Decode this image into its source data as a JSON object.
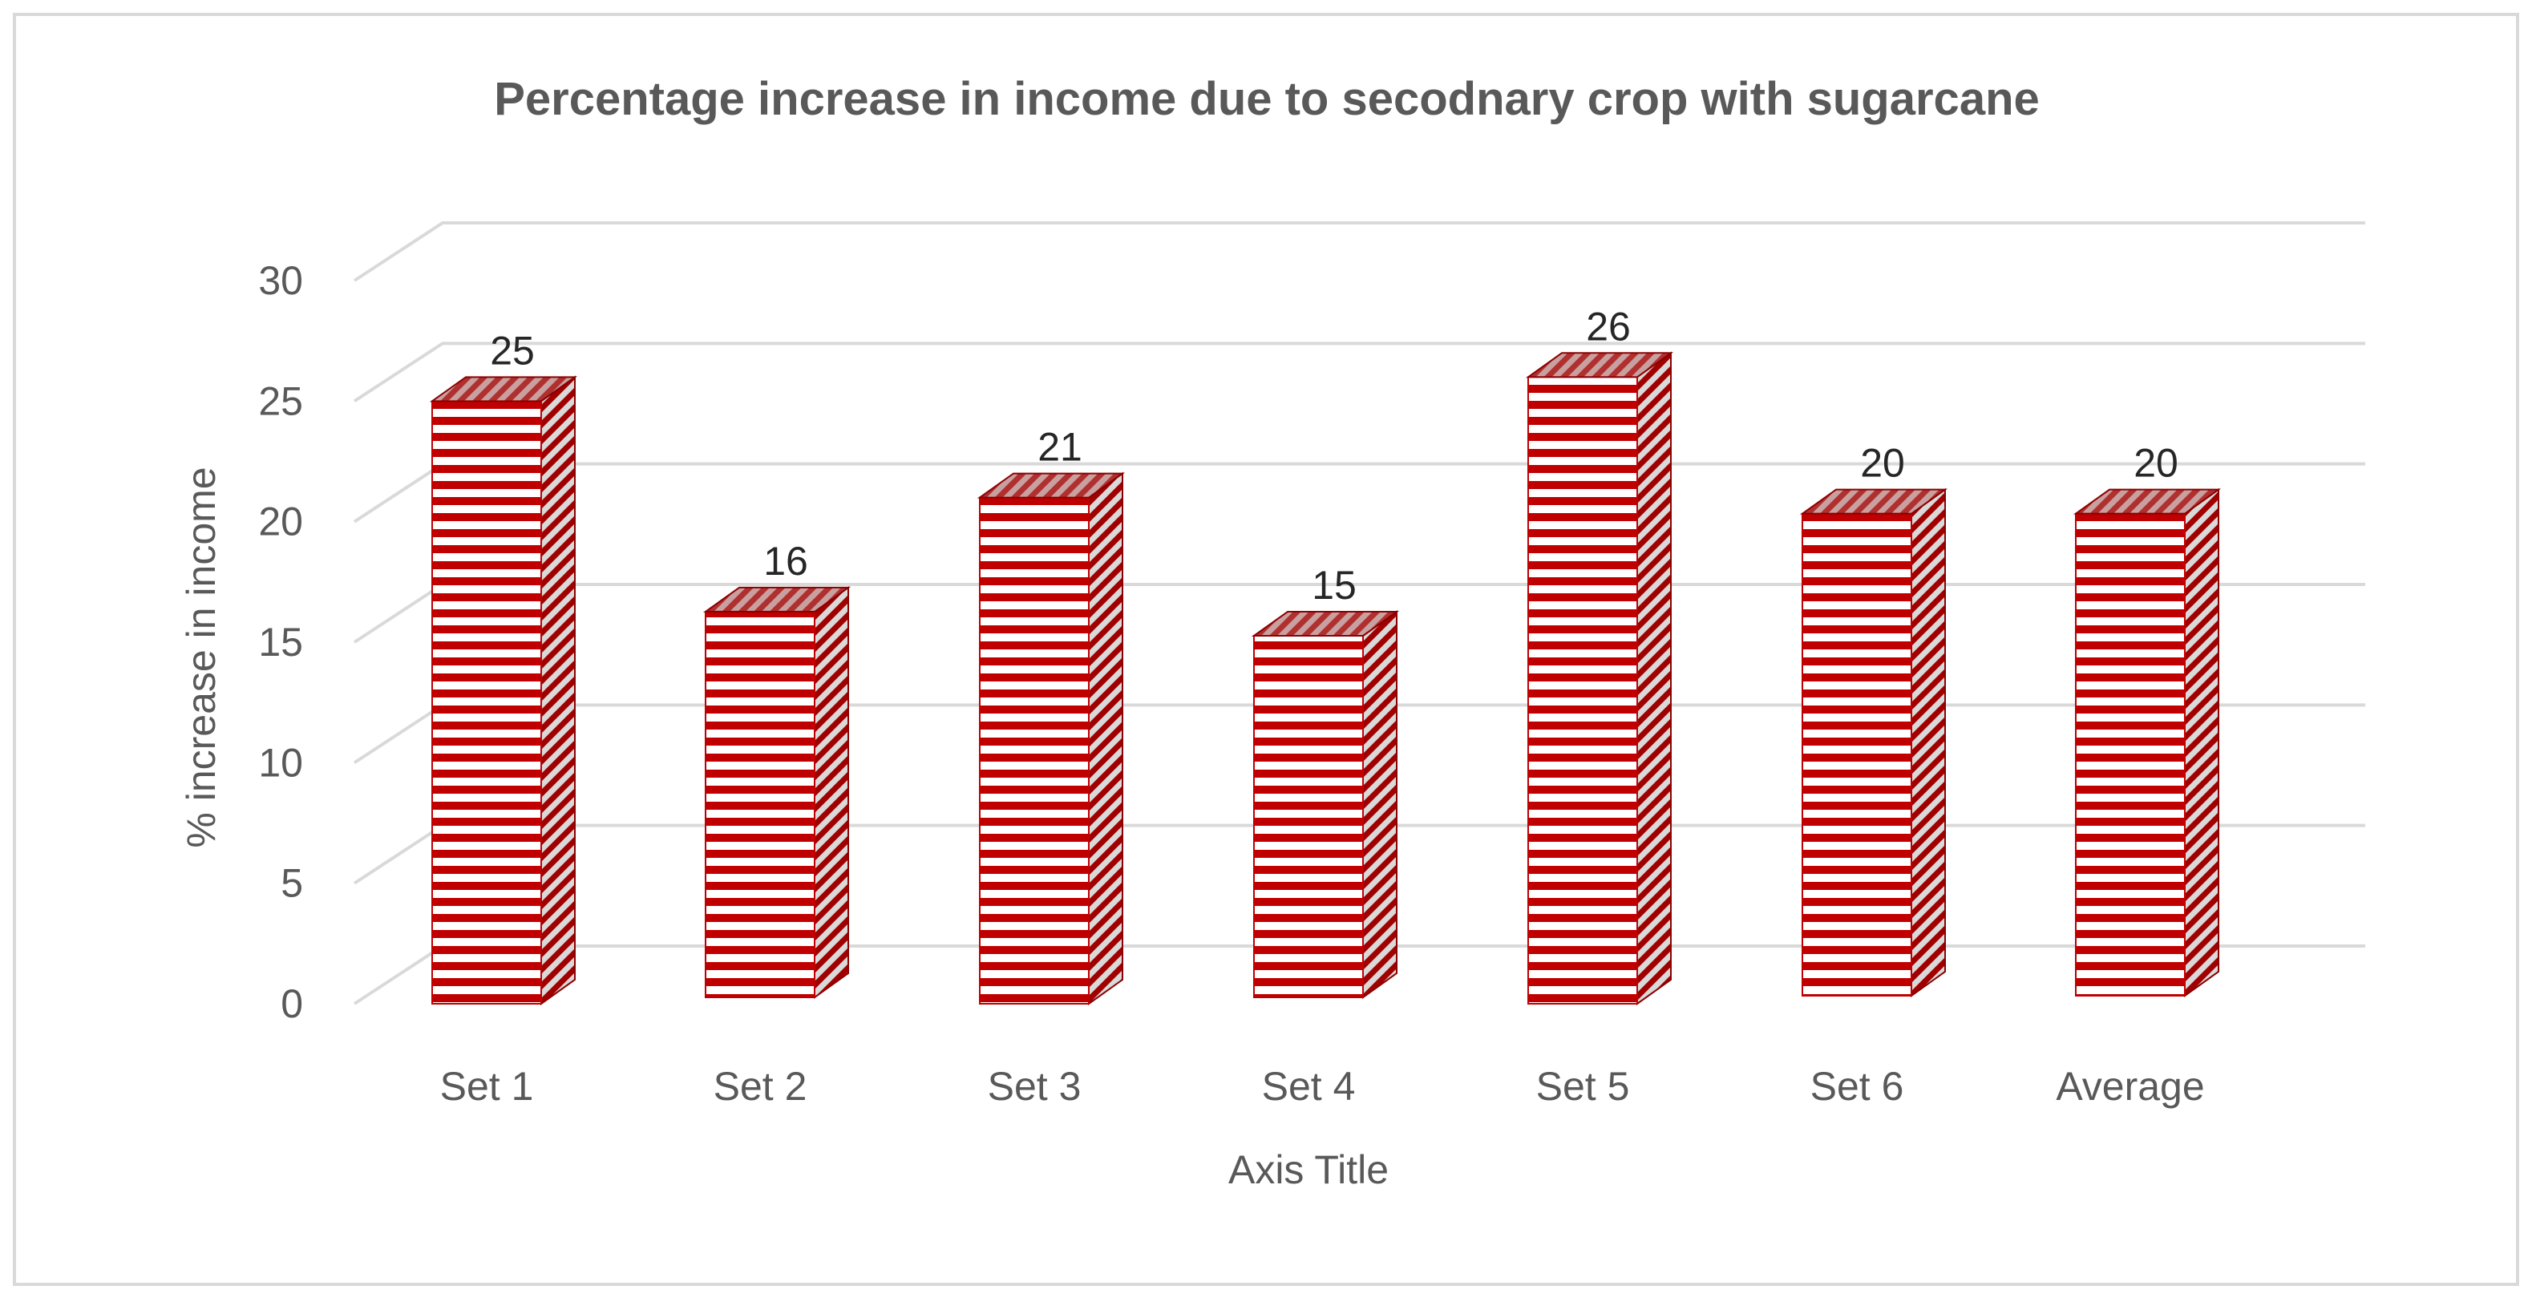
{
  "chart_data": {
    "type": "bar",
    "title": "Percentage increase in income due to secodnary crop with sugarcane",
    "xlabel": "Axis Title",
    "ylabel": "% increase in income",
    "categories": [
      "Set 1",
      "Set 2",
      "Set 3",
      "Set 4",
      "Set 5",
      "Set 6",
      "Average"
    ],
    "values": [
      25,
      16,
      21,
      15,
      26,
      20,
      20
    ],
    "data_labels": [
      "25",
      "16",
      "21",
      "15",
      "26",
      "20",
      "20"
    ],
    "ylim": [
      0,
      30
    ],
    "yticks": [
      0,
      5,
      10,
      15,
      20,
      25,
      30
    ],
    "ytick_labels": [
      "0",
      "5",
      "10",
      "15",
      "20",
      "25",
      "30"
    ],
    "grid": true,
    "style": "3d-column",
    "pattern": "horizontal-stripes",
    "colors": {
      "bar": "#c00000",
      "bar_dark": "#8b0000",
      "stripe_light": "#ffffff",
      "side_light": "#d9d9d9",
      "grid": "#d9d9d9",
      "text": "#595959",
      "label": "#262626"
    }
  }
}
